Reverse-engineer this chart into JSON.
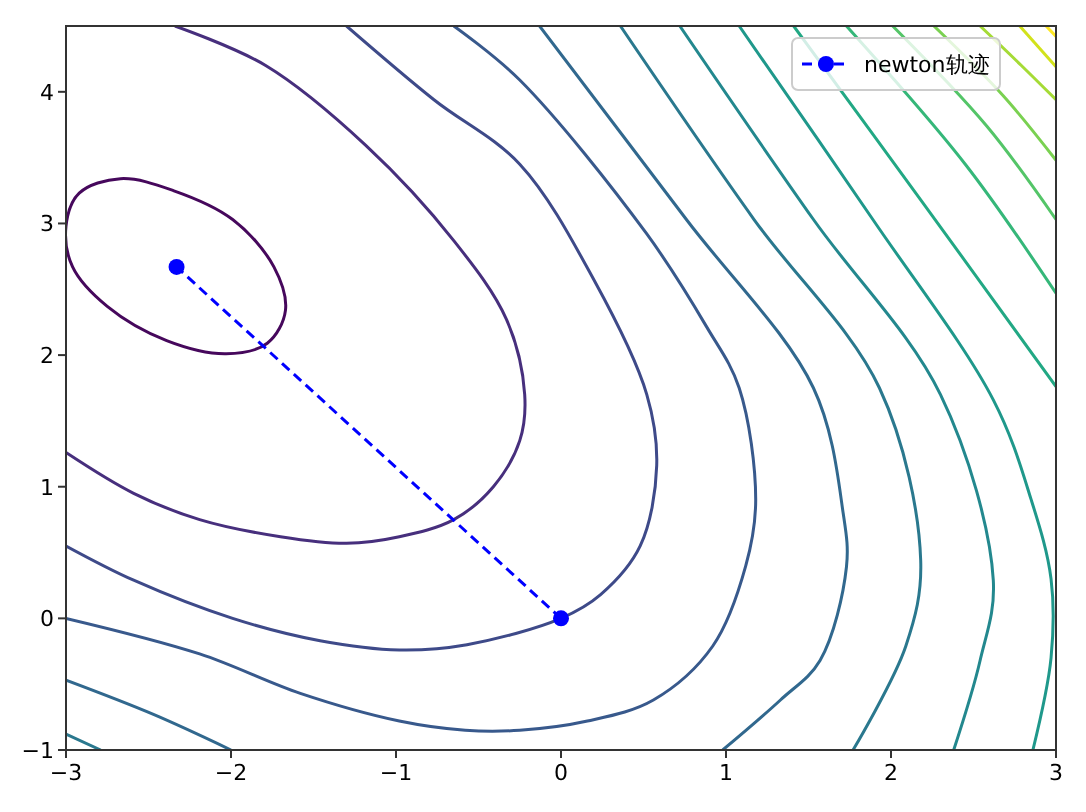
{
  "chart_data": {
    "type": "line",
    "xlim": [
      -3,
      3
    ],
    "ylim": [
      -1,
      4.5
    ],
    "xticks": [
      {
        "value": -3,
        "label": "−3"
      },
      {
        "value": -2,
        "label": "−2"
      },
      {
        "value": -1,
        "label": "−1"
      },
      0,
      1,
      2,
      3
    ],
    "yticks": [
      {
        "value": -1,
        "label": "−1"
      },
      0,
      1,
      2,
      3,
      4
    ],
    "grid": false,
    "legend": "top right",
    "marker": "none",
    "line_style": "solid",
    "series": [
      {
        "color": "#472f7d",
        "x": [
          -2.34,
          -1.79,
          -1.18,
          -0.65,
          -0.33,
          -0.22,
          -0.25,
          -0.41,
          -0.65,
          -0.98,
          -1.3,
          -1.7,
          -2.19,
          -2.59,
          -3.0
        ],
        "values": [
          4.5,
          4.2,
          3.59,
          2.87,
          2.27,
          1.7,
          1.35,
          1.0,
          0.75,
          0.62,
          0.57,
          0.62,
          0.75,
          0.95,
          1.26
        ]
      },
      {
        "color": "#3e4a89",
        "x": [
          -1.3,
          -0.77,
          -0.25,
          0.2,
          0.52,
          0.58,
          0.48,
          0.24,
          0.0,
          -0.57,
          -0.98,
          -1.46,
          -1.99,
          -2.59,
          -3.0
        ],
        "values": [
          4.5,
          3.94,
          3.45,
          2.57,
          1.7,
          1.16,
          0.55,
          0.18,
          0.0,
          -0.2,
          -0.24,
          -0.17,
          0.0,
          0.29,
          0.55
        ]
      },
      {
        "color": "#38598c",
        "x": [
          -0.65,
          -0.25,
          0.52,
          0.88,
          1.08,
          1.18,
          1.12,
          0.92,
          0.56,
          0.16,
          -0.25,
          -0.58,
          -0.98,
          -1.58,
          -2.19,
          -3.0
        ],
        "values": [
          4.5,
          4.09,
          2.92,
          2.22,
          1.75,
          0.9,
          0.4,
          -0.21,
          -0.62,
          -0.78,
          -0.85,
          -0.85,
          -0.78,
          -0.57,
          -0.27,
          0.0
        ]
      },
      {
        "color": "#31688e",
        "x": [
          -0.13,
          0.76,
          1.53,
          1.71,
          1.73,
          1.57,
          1.33,
          0.98,
          null,
          -3.0,
          -2.47,
          -2.0
        ],
        "values": [
          4.5,
          3.03,
          1.75,
          0.8,
          0.39,
          -0.32,
          -0.62,
          -1.0,
          null,
          -0.47,
          -0.73,
          -1.0
        ]
      },
      {
        "color": "#2a788e",
        "x": [
          0.36,
          1.17,
          1.93,
          2.18,
          2.09,
          1.77,
          null,
          -3.0,
          -2.79
        ],
        "values": [
          4.5,
          3.03,
          1.75,
          0.44,
          -0.21,
          -1.0,
          null,
          -0.88,
          -1.0
        ]
      },
      {
        "color": "#23888e",
        "x": [
          0.72,
          1.53,
          2.3,
          2.62,
          2.54,
          2.38
        ],
        "values": [
          4.5,
          3.03,
          1.7,
          0.29,
          -0.32,
          -1.0
        ]
      },
      {
        "color": "#1f988b",
        "x": [
          1.08,
          1.89,
          2.62,
          2.85,
          2.97,
          2.97,
          2.86
        ],
        "values": [
          4.5,
          3.03,
          1.66,
          0.9,
          0.3,
          -0.3,
          -1.0
        ]
      },
      {
        "color": "#22a884",
        "x": [
          1.41,
          2.18,
          3.0
        ],
        "values": [
          4.5,
          3.18,
          1.76
        ]
      },
      {
        "color": "#35b779",
        "x": [
          1.73,
          2.45,
          3.0
        ],
        "values": [
          4.5,
          3.45,
          2.47
        ]
      },
      {
        "color": "#54c568",
        "x": [
          2.01,
          2.58,
          3.0
        ],
        "values": [
          4.5,
          3.74,
          3.03
        ]
      },
      {
        "color": "#7ad151",
        "x": [
          2.26,
          2.68,
          3.0
        ],
        "values": [
          4.5,
          3.97,
          3.48
        ]
      },
      {
        "color": "#a5db36",
        "x": [
          2.54,
          2.79,
          3.0
        ],
        "values": [
          4.5,
          4.2,
          3.94
        ]
      },
      {
        "color": "#d2e21b",
        "x": [
          2.78,
          3.0
        ],
        "values": [
          4.5,
          4.19
        ]
      },
      {
        "color": "#fde725",
        "x": [
          2.94,
          3.0
        ],
        "values": [
          4.5,
          4.42
        ]
      },
      {
        "name": "newton轨迹",
        "color": "#0000ff",
        "x": [
          0,
          -2.33
        ],
        "values": [
          0,
          2.67
        ],
        "marker": "circle",
        "line_style": "dashed"
      }
    ]
  }
}
